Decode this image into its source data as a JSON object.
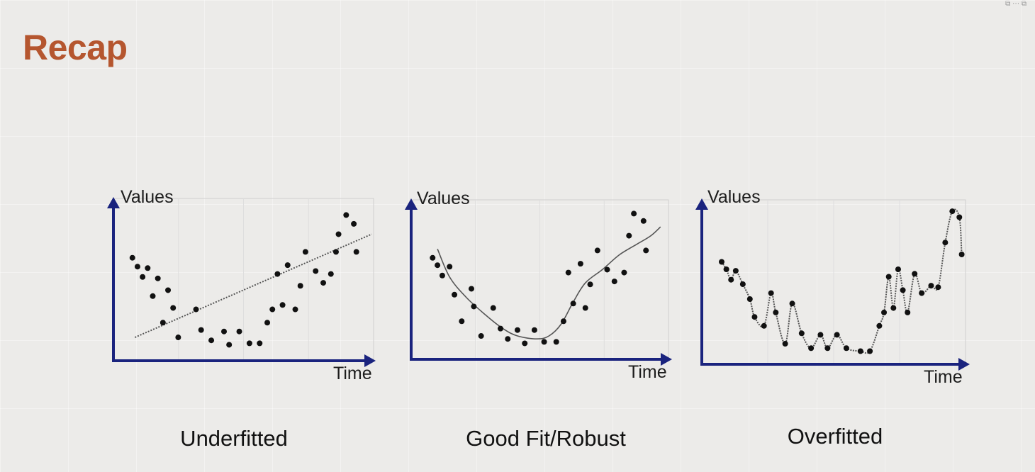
{
  "slide": {
    "title": "Recap"
  },
  "colors": {
    "title": "#b5562f",
    "axis": "#1a237e",
    "point": "#111111",
    "curve": "#555555"
  },
  "chart_data": [
    {
      "type": "scatter",
      "caption": "Underfitted",
      "ylabel": "Values",
      "xlabel": "Time",
      "grid": true,
      "xlim": [
        0,
        100
      ],
      "ylim": [
        0,
        100
      ],
      "fit": "linear",
      "fit_line": [
        [
          4,
          12
        ],
        [
          97,
          82
        ]
      ],
      "points": [
        [
          3,
          66
        ],
        [
          5,
          60
        ],
        [
          7,
          53
        ],
        [
          9,
          59
        ],
        [
          11,
          40
        ],
        [
          13,
          52
        ],
        [
          15,
          22
        ],
        [
          17,
          44
        ],
        [
          19,
          32
        ],
        [
          21,
          12
        ],
        [
          28,
          31
        ],
        [
          30,
          17
        ],
        [
          34,
          10
        ],
        [
          39,
          16
        ],
        [
          41,
          7
        ],
        [
          45,
          16
        ],
        [
          49,
          8
        ],
        [
          53,
          8
        ],
        [
          56,
          22
        ],
        [
          58,
          31
        ],
        [
          60,
          55
        ],
        [
          62,
          34
        ],
        [
          64,
          61
        ],
        [
          67,
          31
        ],
        [
          69,
          47
        ],
        [
          71,
          70
        ],
        [
          75,
          57
        ],
        [
          78,
          49
        ],
        [
          81,
          55
        ],
        [
          83,
          70
        ],
        [
          84,
          82
        ],
        [
          87,
          95
        ],
        [
          90,
          89
        ],
        [
          91,
          70
        ]
      ]
    },
    {
      "type": "scatter",
      "caption": "Good Fit/Robust",
      "ylabel": "Values",
      "xlabel": "Time",
      "grid": true,
      "xlim": [
        0,
        100
      ],
      "ylim": [
        0,
        100
      ],
      "fit": "smooth",
      "fit_curve": [
        [
          5,
          71
        ],
        [
          10,
          52
        ],
        [
          17,
          38
        ],
        [
          25,
          26
        ],
        [
          32,
          17
        ],
        [
          38,
          12
        ],
        [
          46,
          10
        ],
        [
          51,
          12
        ],
        [
          56,
          20
        ],
        [
          61,
          35
        ],
        [
          66,
          48
        ],
        [
          73,
          57
        ],
        [
          80,
          67
        ],
        [
          87,
          74
        ],
        [
          93,
          80
        ],
        [
          97,
          86
        ]
      ],
      "points": [
        [
          3,
          65
        ],
        [
          5,
          60
        ],
        [
          7,
          53
        ],
        [
          10,
          59
        ],
        [
          12,
          40
        ],
        [
          15,
          22
        ],
        [
          19,
          44
        ],
        [
          20,
          32
        ],
        [
          23,
          12
        ],
        [
          28,
          31
        ],
        [
          31,
          17
        ],
        [
          34,
          10
        ],
        [
          38,
          16
        ],
        [
          41,
          7
        ],
        [
          45,
          16
        ],
        [
          49,
          8
        ],
        [
          54,
          8
        ],
        [
          57,
          22
        ],
        [
          59,
          55
        ],
        [
          61,
          34
        ],
        [
          64,
          61
        ],
        [
          66,
          31
        ],
        [
          68,
          47
        ],
        [
          71,
          70
        ],
        [
          75,
          57
        ],
        [
          78,
          49
        ],
        [
          82,
          55
        ],
        [
          84,
          80
        ],
        [
          86,
          95
        ],
        [
          90,
          90
        ],
        [
          91,
          70
        ]
      ]
    },
    {
      "type": "scatter",
      "caption": "Overfitted",
      "ylabel": "Values",
      "xlabel": "Time",
      "grid": true,
      "xlim": [
        0,
        100
      ],
      "ylim": [
        0,
        100
      ],
      "fit": "interpolating",
      "points": [
        [
          3,
          65
        ],
        [
          5,
          60
        ],
        [
          7,
          53
        ],
        [
          9,
          59
        ],
        [
          12,
          50
        ],
        [
          15,
          40
        ],
        [
          17,
          28
        ],
        [
          21,
          22
        ],
        [
          24,
          44
        ],
        [
          26,
          31
        ],
        [
          30,
          10
        ],
        [
          33,
          37
        ],
        [
          37,
          17
        ],
        [
          41,
          7
        ],
        [
          45,
          16
        ],
        [
          48,
          7
        ],
        [
          52,
          16
        ],
        [
          56,
          7
        ],
        [
          62,
          5
        ],
        [
          66,
          5
        ],
        [
          70,
          22
        ],
        [
          72,
          31
        ],
        [
          74,
          55
        ],
        [
          76,
          34
        ],
        [
          78,
          60
        ],
        [
          80,
          46
        ],
        [
          82,
          31
        ],
        [
          85,
          57
        ],
        [
          88,
          44
        ],
        [
          92,
          49
        ],
        [
          95,
          48
        ],
        [
          98,
          78
        ],
        [
          101,
          99
        ],
        [
          104,
          95
        ],
        [
          105,
          70
        ]
      ]
    }
  ]
}
